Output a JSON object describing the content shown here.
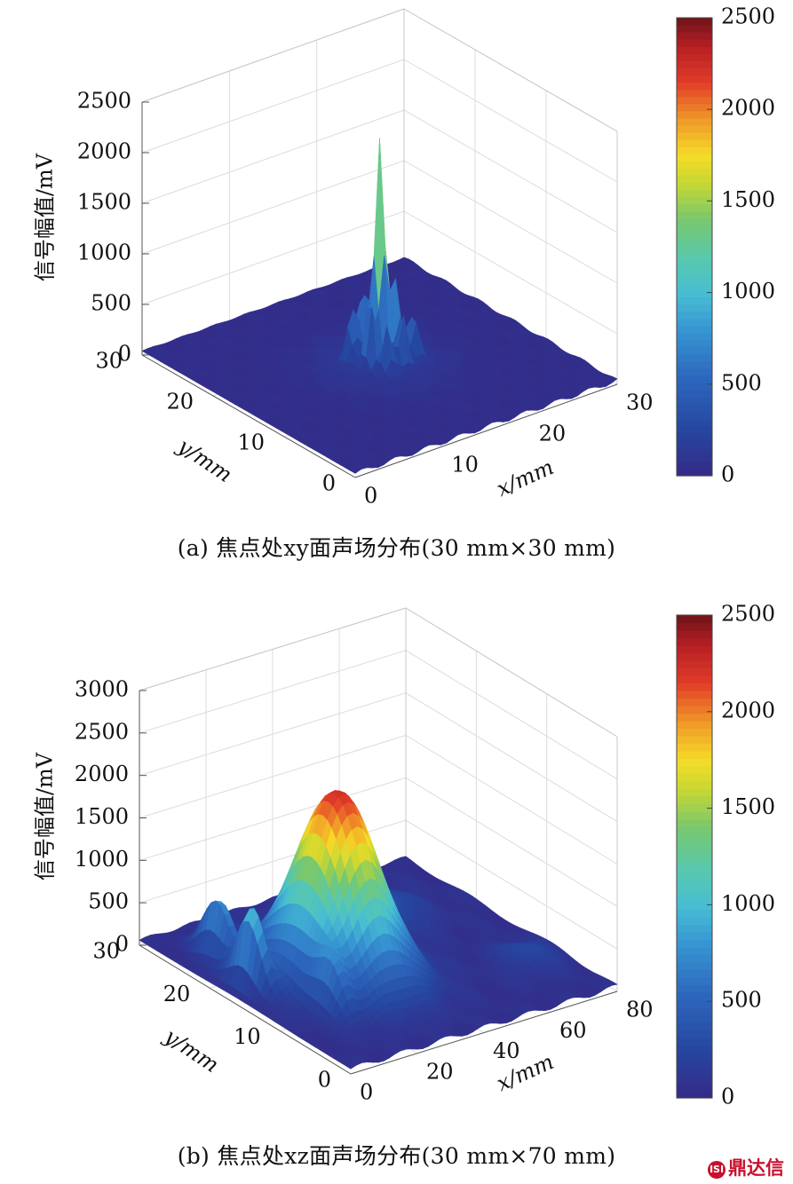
{
  "chart_data": [
    {
      "type": "surface3d",
      "panel": "a",
      "caption": "(a) 焦点处xy面声场分布(30 mm×30 mm)",
      "zlabel": "信号幅值/mV",
      "xlabel": "x/mm",
      "ylabel": "y/mm",
      "xlim": [
        0,
        30
      ],
      "ylim": [
        0,
        30
      ],
      "zlim": [
        0,
        2500
      ],
      "xticks": [
        "0",
        "10",
        "20",
        "30"
      ],
      "yticks": [
        "0",
        "10",
        "20",
        "30"
      ],
      "zticks": [
        "0",
        "500",
        "1000",
        "1500",
        "2000",
        "2500"
      ],
      "colorbar": {
        "min": 0,
        "max": 2500,
        "ticks": [
          "0",
          "500",
          "1000",
          "1500",
          "2000",
          "2500"
        ]
      },
      "peak": {
        "x": 15,
        "y": 15,
        "z": 2100
      },
      "side_lobes_z": [
        800,
        700,
        650,
        550
      ]
    },
    {
      "type": "surface3d",
      "panel": "b",
      "caption": "(b) 焦点处xz面声场分布(30 mm×70 mm)",
      "zlabel": "信号幅值/mV",
      "xlabel": "x/mm",
      "ylabel": "y/mm",
      "xlim": [
        0,
        80
      ],
      "ylim": [
        0,
        30
      ],
      "zlim": [
        0,
        3000
      ],
      "xticks": [
        "0",
        "20",
        "40",
        "60",
        "80"
      ],
      "yticks": [
        "0",
        "10",
        "20",
        "30"
      ],
      "zticks": [
        "0",
        "500",
        "1000",
        "1500",
        "2000",
        "2500",
        "3000"
      ],
      "colorbar": {
        "min": 0,
        "max": 2500,
        "ticks": [
          "0",
          "500",
          "1000",
          "1500",
          "2000",
          "2500"
        ]
      },
      "peak": {
        "x": 30,
        "y": 15,
        "z": 2200
      },
      "secondary_peaks_z": [
        800,
        800,
        400
      ]
    }
  ],
  "watermark": {
    "text": "鼎达信",
    "mark": "ISI"
  }
}
